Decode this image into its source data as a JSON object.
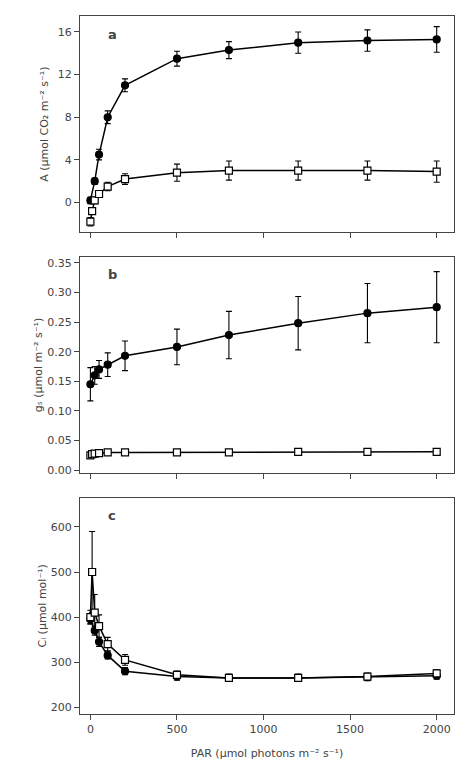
{
  "chart_data": [
    {
      "type": "line",
      "ylabel": "A (μmol CO₂ m⁻² s⁻¹)",
      "annotations": [
        "a"
      ],
      "xlim": [
        -60,
        2100
      ],
      "xticks": [
        0,
        500,
        1000,
        1500,
        2000
      ],
      "ylim": [
        -2.8,
        17.5
      ],
      "yticks": [
        0,
        4,
        8,
        12,
        16
      ],
      "grid": false,
      "tick_labels": "y",
      "series": [
        {
          "x": [
            0,
            25,
            50,
            100,
            200,
            500,
            800,
            1200,
            1600,
            2000
          ],
          "values": [
            0.2,
            2.0,
            4.5,
            8.0,
            11.0,
            13.5,
            14.3,
            15.0,
            15.2,
            15.3
          ],
          "errors": [
            0.3,
            0.3,
            0.5,
            0.6,
            0.6,
            0.7,
            0.8,
            1.0,
            1.0,
            1.2
          ],
          "color": "black",
          "marker": "circle",
          "line_style": "solid"
        },
        {
          "x": [
            0,
            10,
            25,
            50,
            100,
            200,
            500,
            800,
            1200,
            1600,
            2000
          ],
          "values": [
            -1.8,
            -0.8,
            0.2,
            0.8,
            1.5,
            2.2,
            2.8,
            3.0,
            3.0,
            3.0,
            2.9
          ],
          "errors": [
            0.4,
            0.3,
            0.3,
            0.3,
            0.4,
            0.5,
            0.8,
            0.9,
            0.9,
            0.9,
            1.0
          ],
          "color": "black",
          "marker": "square-open",
          "line_style": "solid"
        }
      ]
    },
    {
      "type": "line",
      "ylabel": "gₛ (μmol m⁻² s⁻¹)",
      "annotations": [
        "b"
      ],
      "xlim": [
        -60,
        2100
      ],
      "xticks": [
        0,
        500,
        1000,
        1500,
        2000
      ],
      "ylim": [
        -0.005,
        0.36
      ],
      "yticks": [
        {
          "value": 0,
          "label": "0.00"
        },
        0.05,
        {
          "value": 0.1,
          "label": "0.10"
        },
        0.15,
        {
          "value": 0.2,
          "label": "0.20"
        },
        0.25,
        {
          "value": 0.3,
          "label": "0.30"
        },
        0.35
      ],
      "grid": false,
      "tick_labels": "y",
      "series": [
        {
          "x": [
            0,
            25,
            50,
            100,
            200,
            500,
            800,
            1200,
            1600,
            2000
          ],
          "values": [
            0.145,
            0.16,
            0.17,
            0.178,
            0.193,
            0.208,
            0.228,
            0.248,
            0.265,
            0.275
          ],
          "errors": [
            0.028,
            0.015,
            0.015,
            0.02,
            0.025,
            0.03,
            0.04,
            0.045,
            0.05,
            0.06
          ],
          "color": "black",
          "marker": "circle",
          "line_style": "solid"
        },
        {
          "x": [
            0,
            10,
            25,
            50,
            100,
            200,
            500,
            800,
            1200,
            1600,
            2000
          ],
          "values": [
            0.025,
            0.027,
            0.028,
            0.029,
            0.03,
            0.03,
            0.03,
            0.03,
            0.031,
            0.031,
            0.031
          ],
          "errors": [
            0.002,
            0.002,
            0.002,
            0.002,
            0.002,
            0.002,
            0.002,
            0.002,
            0.002,
            0.002,
            0.002
          ],
          "color": "black",
          "marker": "square-open",
          "line_style": "solid"
        }
      ]
    },
    {
      "type": "line",
      "xlabel": "PAR (μmol photons m⁻² s⁻¹)",
      "ylabel": "Cᵢ (μmol mol⁻¹)",
      "annotations": [
        "c"
      ],
      "xlim": [
        -60,
        2100
      ],
      "xticks": [
        0,
        500,
        1000,
        1500,
        2000
      ],
      "ylim": [
        185,
        665
      ],
      "yticks": [
        200,
        300,
        400,
        500,
        600
      ],
      "grid": false,
      "series": [
        {
          "x": [
            0,
            25,
            50,
            100,
            200,
            500,
            800,
            1200,
            1600,
            2000
          ],
          "values": [
            395,
            370,
            345,
            315,
            280,
            268,
            265,
            265,
            267,
            270
          ],
          "errors": [
            10,
            10,
            10,
            8,
            8,
            8,
            8,
            8,
            8,
            8
          ],
          "color": "black",
          "marker": "circle",
          "line_style": "solid"
        },
        {
          "x": [
            0,
            10,
            25,
            50,
            100,
            200,
            500,
            800,
            1200,
            1600,
            2000
          ],
          "values": [
            400,
            500,
            410,
            380,
            340,
            305,
            272,
            265,
            265,
            268,
            275
          ],
          "errors": [
            15,
            90,
            40,
            25,
            15,
            12,
            8,
            8,
            8,
            8,
            8
          ],
          "color": "black",
          "marker": "square-open",
          "line_style": "solid"
        }
      ]
    }
  ]
}
